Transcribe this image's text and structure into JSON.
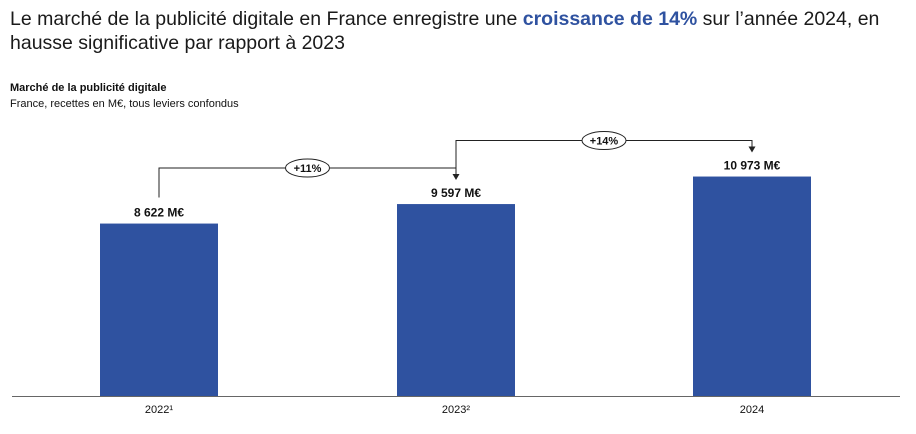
{
  "headline": {
    "part1": "Le marché de la publicité digitale en France enregistre une ",
    "highlight": "croissance de 14%",
    "part2": " sur l’année 2024, en hausse significative par rapport à 2023"
  },
  "colors": {
    "bar": "#2f52a0",
    "accent": "#2f52a0"
  },
  "chart_data": {
    "type": "bar",
    "title": "Marché de la publicité digitale",
    "subtitle": "France, recettes en M€, tous leviers confondus",
    "categories": [
      "2022¹",
      "2023²",
      "2024"
    ],
    "values": [
      8622,
      9597,
      10973
    ],
    "data_labels": [
      "8 622 M€",
      "9 597 M€",
      "10 973 M€"
    ],
    "ylim": [
      0,
      14000
    ],
    "grid": false,
    "legend": "none",
    "growth_annotations": [
      {
        "from": 0,
        "to": 1,
        "label": "+11%"
      },
      {
        "from": 1,
        "to": 2,
        "label": "+14%"
      }
    ]
  }
}
